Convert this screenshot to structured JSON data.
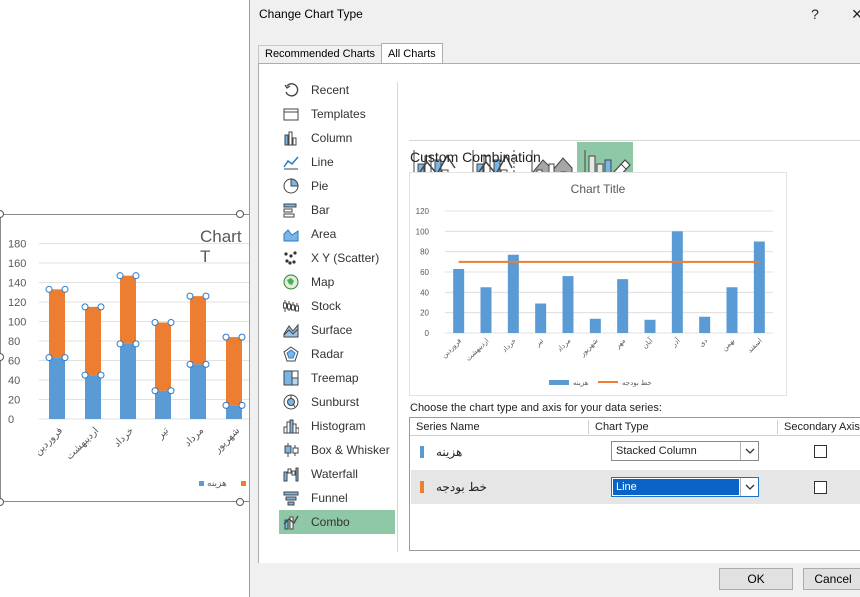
{
  "background_chart": {
    "title": "Chart T",
    "y_ticks": [
      "180",
      "160",
      "140",
      "120",
      "100",
      "80",
      "60",
      "40",
      "20",
      "0"
    ],
    "categories": [
      "فروردین",
      "اردیبهشت",
      "خرداد",
      "تیر",
      "مرداد",
      "شهریور"
    ],
    "legend": [
      "هزینه"
    ],
    "colors": {
      "base": "#5b9bd5",
      "band": "#ed7d31"
    },
    "stack": {
      "base": [
        63,
        45,
        77,
        29,
        56,
        14
      ],
      "band": [
        70,
        70,
        70,
        70,
        70,
        70
      ]
    }
  },
  "dialog": {
    "title": "Change Chart Type",
    "help_label": "?",
    "close_label": "×",
    "tabs": {
      "recommended": "Recommended Charts",
      "all": "All Charts"
    },
    "nav": [
      {
        "label": "Recent",
        "icon": "recent-icon"
      },
      {
        "label": "Templates",
        "icon": "templates-icon"
      },
      {
        "label": "Column",
        "icon": "column-chart-icon"
      },
      {
        "label": "Line",
        "icon": "line-chart-icon"
      },
      {
        "label": "Pie",
        "icon": "pie-chart-icon"
      },
      {
        "label": "Bar",
        "icon": "bar-chart-icon"
      },
      {
        "label": "Area",
        "icon": "area-chart-icon"
      },
      {
        "label": "X Y (Scatter)",
        "icon": "scatter-chart-icon"
      },
      {
        "label": "Map",
        "icon": "map-chart-icon"
      },
      {
        "label": "Stock",
        "icon": "stock-chart-icon"
      },
      {
        "label": "Surface",
        "icon": "surface-chart-icon"
      },
      {
        "label": "Radar",
        "icon": "radar-chart-icon"
      },
      {
        "label": "Treemap",
        "icon": "treemap-chart-icon"
      },
      {
        "label": "Sunburst",
        "icon": "sunburst-chart-icon"
      },
      {
        "label": "Histogram",
        "icon": "histogram-chart-icon"
      },
      {
        "label": "Box & Whisker",
        "icon": "box-whisker-chart-icon"
      },
      {
        "label": "Waterfall",
        "icon": "waterfall-chart-icon"
      },
      {
        "label": "Funnel",
        "icon": "funnel-chart-icon"
      },
      {
        "label": "Combo",
        "icon": "combo-chart-icon",
        "selected": true
      }
    ],
    "section_title": "Custom Combination",
    "series_caption": "Choose the chart type and axis for your data series:",
    "table_headers": {
      "name": "Series Name",
      "type": "Chart Type",
      "axis": "Secondary Axis"
    },
    "series": [
      {
        "name": "هزینه",
        "type": "Stacked Column",
        "color": "#5b9bd5",
        "secondary": false
      },
      {
        "name": "خط بودجه",
        "type": "Line",
        "color": "#ed7d31",
        "secondary": false,
        "active": true
      }
    ],
    "buttons": {
      "ok": "OK",
      "cancel": "Cancel"
    }
  },
  "chart_data": {
    "type": "bar",
    "title": "Chart Title",
    "categories": [
      "فروردین",
      "اردیبهشت",
      "خرداد",
      "تیر",
      "مرداد",
      "شهریور",
      "مهر",
      "آبان",
      "آذر",
      "دی",
      "بهمن",
      "اسفند"
    ],
    "ylim": [
      0,
      120
    ],
    "y_ticks": [
      0,
      20,
      40,
      60,
      80,
      100,
      120
    ],
    "series": [
      {
        "name": "هزینه",
        "type": "column",
        "color": "#5b9bd5",
        "values": [
          63,
          45,
          77,
          29,
          56,
          14,
          53,
          13,
          100,
          16,
          45,
          90
        ]
      },
      {
        "name": "خط بودجه",
        "type": "line",
        "color": "#ed7d31",
        "values": [
          70,
          70,
          70,
          70,
          70,
          70,
          70,
          70,
          70,
          70,
          70,
          70
        ]
      }
    ],
    "legend_position": "bottom"
  }
}
